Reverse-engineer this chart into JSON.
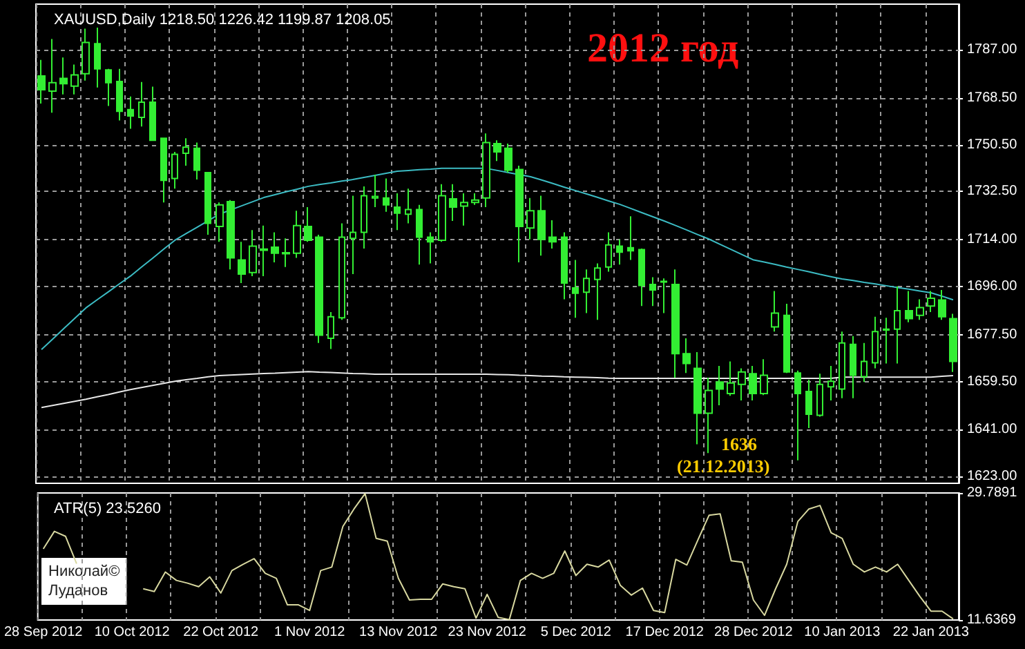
{
  "chart_data": [
    {
      "type": "candlestick",
      "title": "XAUUSD,Daily 1218.50 1226.42 1199.87 1208.05",
      "annotations": [
        "2012 год",
        "1636",
        "(21.12.2013)"
      ],
      "color": "#33ee33",
      "ohlc": [
        [
          1776.9,
          1783.1,
          1766.3,
          1771.6
        ],
        [
          1771.1,
          1791.1,
          1762.8,
          1774.3
        ],
        [
          1776.0,
          1784.0,
          1769.8,
          1773.9
        ],
        [
          1773.0,
          1781.3,
          1769.8,
          1777.3
        ],
        [
          1777.8,
          1795.1,
          1775.1,
          1789.8
        ],
        [
          1789.3,
          1795.5,
          1772.5,
          1779.6
        ],
        [
          1779.2,
          1779.6,
          1765.4,
          1774.3
        ],
        [
          1774.8,
          1779.6,
          1759.8,
          1763.3
        ],
        [
          1764.0,
          1769.0,
          1756.6,
          1761.5
        ],
        [
          1761.0,
          1774.6,
          1757.5,
          1766.8
        ],
        [
          1766.8,
          1772.8,
          1752.2,
          1752.2
        ],
        [
          1753.0,
          1753.0,
          1728.3,
          1736.8
        ],
        [
          1737.5,
          1747.7,
          1733.6,
          1746.8
        ],
        [
          1747.2,
          1753.0,
          1742.4,
          1749.5
        ],
        [
          1749.1,
          1751.3,
          1737.1,
          1740.7
        ],
        [
          1739.8,
          1739.8,
          1715.9,
          1720.3
        ],
        [
          1719.1,
          1728.3,
          1713.2,
          1727.4
        ],
        [
          1728.6,
          1729.2,
          1702.6,
          1707.0
        ],
        [
          1706.2,
          1713.2,
          1697.3,
          1700.8
        ],
        [
          1701.4,
          1717.7,
          1700.0,
          1711.5
        ],
        [
          1709.9,
          1719.4,
          1700.0,
          1710.4
        ],
        [
          1711.1,
          1716.8,
          1705.3,
          1708.8
        ],
        [
          1708.6,
          1714.5,
          1703.5,
          1709.0
        ],
        [
          1708.8,
          1725.1,
          1707.0,
          1719.4
        ],
        [
          1719.1,
          1726.5,
          1713.2,
          1713.8
        ],
        [
          1715.0,
          1715.9,
          1674.3,
          1677.3
        ],
        [
          1676.1,
          1686.2,
          1672.0,
          1684.4
        ],
        [
          1684.0,
          1720.3,
          1683.2,
          1715.0
        ],
        [
          1714.5,
          1730.9,
          1700.8,
          1716.8
        ],
        [
          1716.8,
          1734.5,
          1710.6,
          1730.9
        ],
        [
          1730.0,
          1738.9,
          1726.5,
          1730.6
        ],
        [
          1730.0,
          1737.5,
          1724.7,
          1727.4
        ],
        [
          1726.5,
          1731.8,
          1717.7,
          1724.2
        ],
        [
          1723.8,
          1733.6,
          1720.3,
          1725.6
        ],
        [
          1725.6,
          1727.4,
          1704.4,
          1715.0
        ],
        [
          1715.0,
          1716.8,
          1704.9,
          1713.2
        ],
        [
          1713.8,
          1735.3,
          1713.2,
          1730.9
        ],
        [
          1729.7,
          1735.3,
          1721.2,
          1726.5
        ],
        [
          1726.9,
          1731.8,
          1719.4,
          1728.3
        ],
        [
          1728.3,
          1731.8,
          1727.4,
          1729.2
        ],
        [
          1730.0,
          1754.8,
          1726.5,
          1751.3
        ],
        [
          1750.9,
          1752.2,
          1744.2,
          1747.7
        ],
        [
          1749.1,
          1750.9,
          1739.8,
          1740.7
        ],
        [
          1741.0,
          1742.4,
          1705.3,
          1719.1
        ],
        [
          1718.5,
          1730.0,
          1714.1,
          1725.1
        ],
        [
          1725.1,
          1730.9,
          1707.9,
          1714.1
        ],
        [
          1715.0,
          1721.5,
          1710.6,
          1713.2
        ],
        [
          1715.0,
          1716.8,
          1691.1,
          1697.3
        ],
        [
          1695.5,
          1706.2,
          1684.0,
          1693.4
        ],
        [
          1693.8,
          1702.6,
          1685.8,
          1699.1
        ],
        [
          1698.7,
          1704.9,
          1683.2,
          1703.1
        ],
        [
          1703.5,
          1716.8,
          1701.7,
          1712.0
        ],
        [
          1711.5,
          1714.1,
          1704.4,
          1709.2
        ],
        [
          1710.9,
          1723.0,
          1706.2,
          1709.7
        ],
        [
          1710.2,
          1710.6,
          1688.5,
          1696.4
        ],
        [
          1696.8,
          1699.6,
          1688.5,
          1694.7
        ],
        [
          1697.7,
          1699.1,
          1685.8,
          1698.0
        ],
        [
          1696.8,
          1702.6,
          1661.0,
          1670.2
        ],
        [
          1670.2,
          1676.1,
          1662.8,
          1666.4
        ],
        [
          1664.6,
          1670.8,
          1635.4,
          1647.3
        ],
        [
          1647.3,
          1661.0,
          1632.0,
          1656.1
        ],
        [
          1659.3,
          1665.5,
          1650.4,
          1656.6
        ],
        [
          1654.9,
          1667.2,
          1654.0,
          1658.9
        ],
        [
          1658.4,
          1664.6,
          1652.2,
          1663.2
        ],
        [
          1662.5,
          1665.5,
          1652.2,
          1654.9
        ],
        [
          1654.9,
          1668.1,
          1654.3,
          1661.9
        ],
        [
          1680.5,
          1694.3,
          1678.7,
          1685.8
        ],
        [
          1684.9,
          1689.4,
          1662.8,
          1663.2
        ],
        [
          1662.8,
          1663.7,
          1629.2,
          1654.9
        ],
        [
          1655.7,
          1660.2,
          1641.6,
          1646.9
        ],
        [
          1646.5,
          1662.5,
          1646.0,
          1658.4
        ],
        [
          1657.5,
          1665.5,
          1652.2,
          1659.6
        ],
        [
          1656.6,
          1678.7,
          1653.1,
          1674.3
        ],
        [
          1673.8,
          1677.0,
          1653.1,
          1661.9
        ],
        [
          1661.4,
          1674.3,
          1659.3,
          1667.2
        ],
        [
          1666.7,
          1684.4,
          1664.6,
          1678.7
        ],
        [
          1679.3,
          1684.0,
          1666.4,
          1679.6
        ],
        [
          1679.6,
          1696.1,
          1666.4,
          1686.7
        ],
        [
          1686.7,
          1694.3,
          1682.3,
          1683.7
        ],
        [
          1684.9,
          1691.1,
          1683.2,
          1687.9
        ],
        [
          1688.5,
          1694.3,
          1686.2,
          1691.5
        ],
        [
          1690.8,
          1694.7,
          1683.2,
          1684.4
        ],
        [
          1683.7,
          1685.5,
          1663.2,
          1667.2
        ]
      ],
      "series": [
        {
          "type": "line",
          "color": "#3cbcc4",
          "values": [
            1671.8,
            1675.8,
            1679.8,
            1683.8,
            1687.8,
            1690.9,
            1693.9,
            1697.0,
            1700.0,
            1703.5,
            1706.9,
            1710.4,
            1713.8,
            1716.3,
            1718.8,
            1721.3,
            1723.8,
            1725.4,
            1727.0,
            1728.6,
            1730.2,
            1731.3,
            1732.4,
            1733.4,
            1734.5,
            1735.2,
            1735.8,
            1736.5,
            1737.1,
            1737.9,
            1738.7,
            1739.5,
            1740.3,
            1740.6,
            1740.9,
            1741.1,
            1741.4,
            1741.4,
            1741.4,
            1741.4,
            1741.4,
            1740.6,
            1739.8,
            1739.0,
            1738.2,
            1736.9,
            1735.6,
            1734.2,
            1732.9,
            1731.6,
            1730.3,
            1728.9,
            1727.6,
            1726.0,
            1724.4,
            1722.8,
            1721.2,
            1719.5,
            1717.8,
            1716.0,
            1714.3,
            1712.3,
            1710.3,
            1708.3,
            1706.3,
            1705.4,
            1704.5,
            1703.5,
            1702.6,
            1701.7,
            1700.7,
            1699.8,
            1698.9,
            1698.3,
            1697.6,
            1697.0,
            1696.3,
            1695.6,
            1695.0,
            1694.3,
            1693.6,
            1692.3,
            1690.9
          ]
        },
        {
          "type": "line",
          "color": "#e8e8e8",
          "values": [
            1649.5,
            1650.3,
            1651.1,
            1651.9,
            1652.7,
            1653.6,
            1654.5,
            1655.5,
            1656.4,
            1657.2,
            1658.0,
            1658.8,
            1659.6,
            1660.2,
            1660.7,
            1661.3,
            1661.8,
            1662.0,
            1662.2,
            1662.4,
            1662.6,
            1662.7,
            1662.9,
            1663.1,
            1663.3,
            1663.1,
            1663.0,
            1662.8,
            1662.6,
            1662.5,
            1662.3,
            1662.3,
            1662.3,
            1662.3,
            1662.3,
            1662.3,
            1662.3,
            1662.3,
            1662.3,
            1662.3,
            1662.3,
            1662.2,
            1662.1,
            1661.9,
            1661.8,
            1661.6,
            1661.5,
            1661.3,
            1661.2,
            1661.1,
            1661.0,
            1660.8,
            1660.7,
            1660.7,
            1660.7,
            1660.7,
            1660.7,
            1660.7,
            1660.7,
            1660.7,
            1660.7,
            1660.7,
            1660.7,
            1660.7,
            1660.7,
            1660.7,
            1660.7,
            1660.7,
            1660.7,
            1660.7,
            1660.7,
            1660.7,
            1661.2,
            1661.2,
            1661.2,
            1661.2,
            1661.2,
            1661.2,
            1661.2,
            1661.2,
            1661.2,
            1661.5,
            1661.8
          ]
        }
      ],
      "ylim": [
        1620.4,
        1804.5
      ],
      "yticks": [
        {
          "value": 1623,
          "label": "1623.00"
        },
        {
          "value": 1641,
          "label": "1641.00"
        },
        {
          "value": 1659.5,
          "label": "1659.50"
        },
        {
          "value": 1677.5,
          "label": "1677.50"
        },
        {
          "value": 1696,
          "label": "1696.00"
        },
        {
          "value": 1714,
          "label": "1714.00"
        },
        {
          "value": 1732.5,
          "label": "1732.50"
        },
        {
          "value": 1750.5,
          "label": "1750.50"
        },
        {
          "value": 1768.5,
          "label": "1768.50"
        },
        {
          "value": 1787,
          "label": "1787.00"
        }
      ],
      "grid": true,
      "tick_labels": "y"
    },
    {
      "type": "line",
      "title": "ATR(5) 23.5260",
      "annotations": [
        "Николай© Луданов"
      ],
      "categories": [
        "28 Sep 2012",
        null,
        null,
        null,
        null,
        null,
        null,
        null,
        "10 Oct 2012",
        null,
        null,
        null,
        null,
        null,
        null,
        null,
        "22 Oct 2012",
        null,
        null,
        null,
        null,
        null,
        null,
        null,
        "1 Nov 2012",
        null,
        null,
        null,
        null,
        null,
        null,
        null,
        "13 Nov 2012",
        null,
        null,
        null,
        null,
        null,
        null,
        null,
        "23 Nov 2012",
        null,
        null,
        null,
        null,
        null,
        null,
        null,
        "5 Dec 2012",
        null,
        null,
        null,
        null,
        null,
        null,
        null,
        "17 Dec 2012",
        null,
        null,
        null,
        null,
        null,
        null,
        null,
        "28 Dec 2012",
        null,
        null,
        null,
        null,
        null,
        null,
        null,
        "10 Jan 2013",
        null,
        null,
        null,
        null,
        null,
        null,
        null,
        "22 Jan 2013",
        null,
        null
      ],
      "series": [
        {
          "color": "#d8d8a0",
          "values": [
            21.8,
            24.3,
            23.6,
            19.7,
            null,
            null,
            null,
            null,
            null,
            16.1,
            15.7,
            18.5,
            17.3,
            16.9,
            16.4,
            17.8,
            15.5,
            18.7,
            19.6,
            20.4,
            18.3,
            17.6,
            13.8,
            13.8,
            13.0,
            18.7,
            19.2,
            25.0,
            27.5,
            29.7,
            23.3,
            22.9,
            17.6,
            14.5,
            14.6,
            14.6,
            16.8,
            16.4,
            16.1,
            11.9,
            15.3,
            12.0,
            11.7,
            17.3,
            18.3,
            17.6,
            18.3,
            21.5,
            18.0,
            19.6,
            19.2,
            20.2,
            16.6,
            15.2,
            16.2,
            13.0,
            12.7,
            20.3,
            19.5,
            23.1,
            26.6,
            26.8,
            20.1,
            19.9,
            14.5,
            12.3,
            16.1,
            19.6,
            25.7,
            27.5,
            28.0,
            24.1,
            23.3,
            19.6,
            18.5,
            19.2,
            18.5,
            19.6,
            17.3,
            15.0,
            12.9,
            12.9,
            11.8
          ]
        }
      ],
      "ylim": [
        11.6369,
        29.7891
      ],
      "yticks": [
        11.6369,
        29.7891
      ],
      "grid": "x"
    }
  ]
}
